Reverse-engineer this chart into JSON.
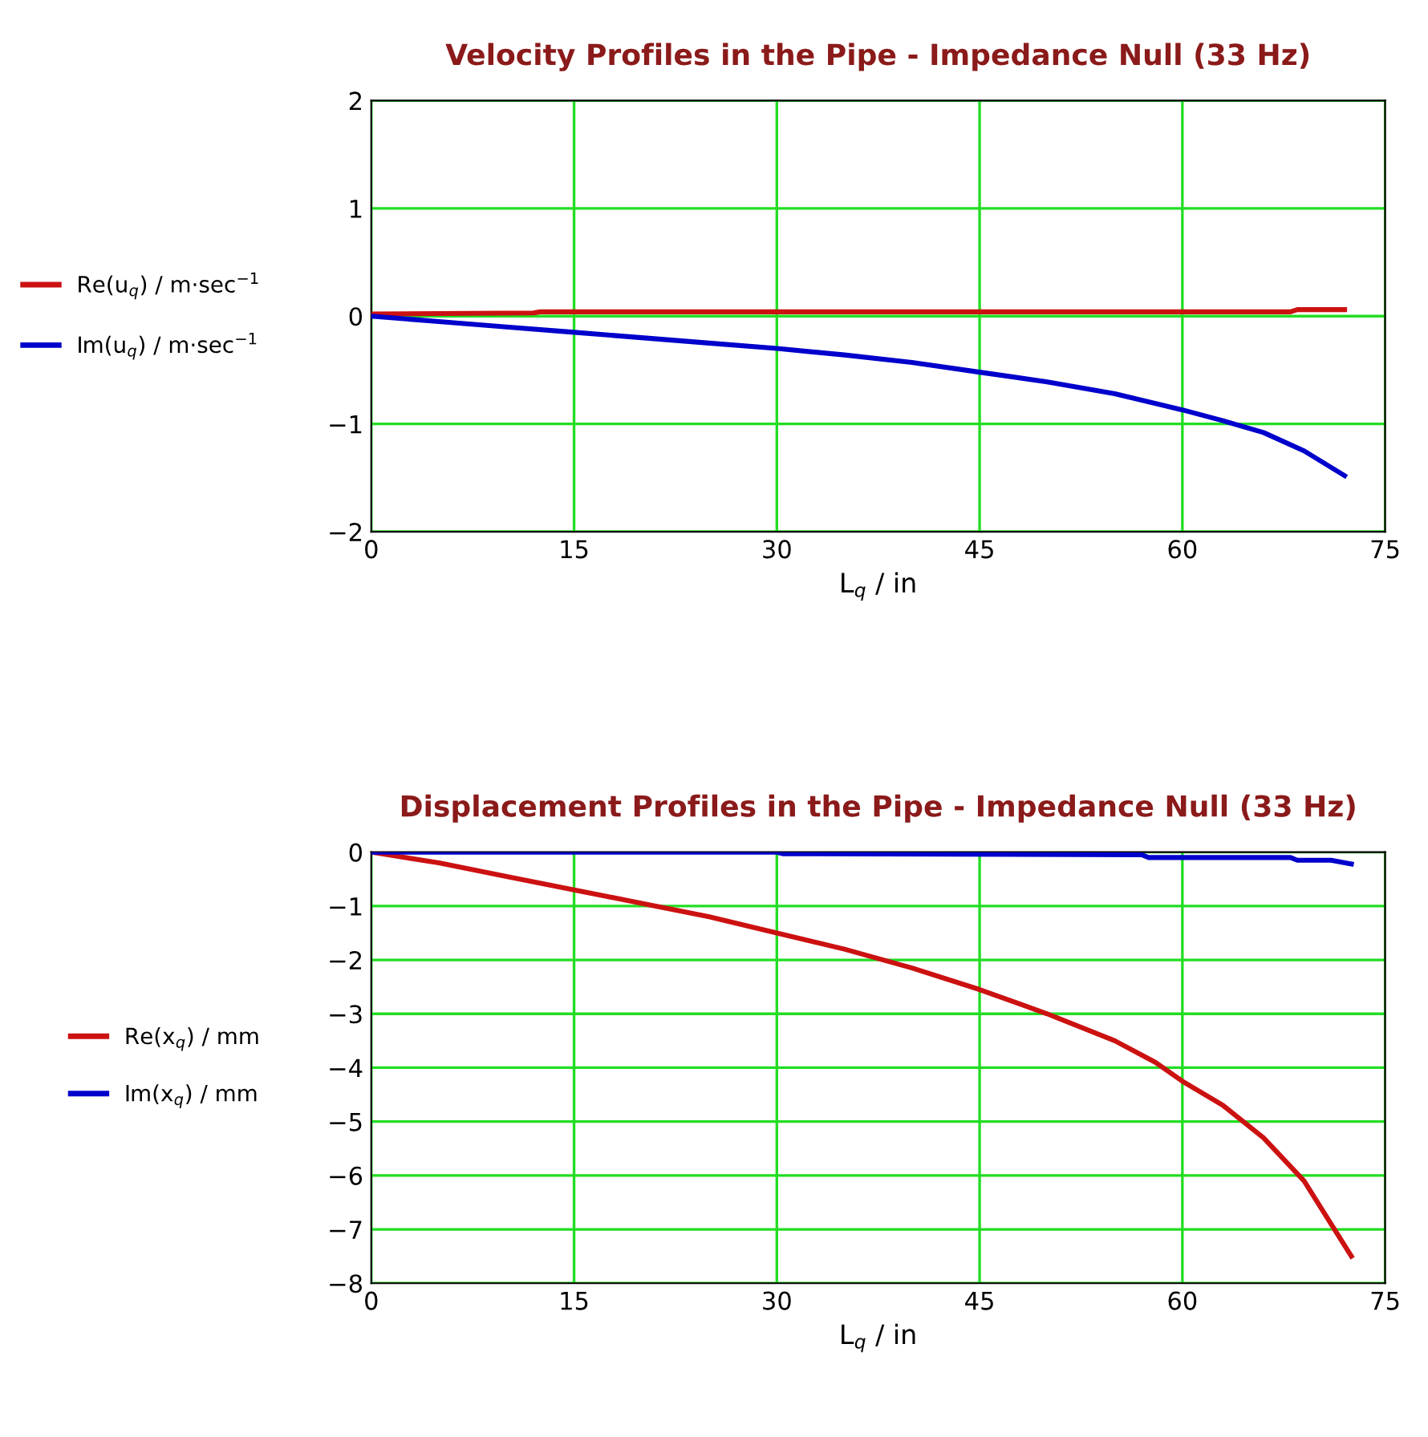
{
  "chart_data": [
    {
      "type": "line",
      "title": "Velocity Profiles in the Pipe - Impedance Null (33 Hz)",
      "xlabel": "L$_{q}$ / in",
      "xlim": [
        0,
        75
      ],
      "xticks": [
        0,
        15,
        30,
        45,
        60,
        75
      ],
      "ylim": [
        -2,
        2
      ],
      "yticks": [
        -2,
        -1,
        0,
        1,
        2
      ],
      "grid": true,
      "legend": "left",
      "line_style": "solid",
      "marker": "none",
      "series": [
        {
          "name": "Re(u$_{q}$) / m·sec$^{−1}$",
          "color": "#cc1111",
          "x": [
            0,
            12,
            12.5,
            68,
            68.5,
            72
          ],
          "values": [
            0.02,
            0.03,
            0.04,
            0.04,
            0.06,
            0.06
          ]
        },
        {
          "name": "Im(u$_{q}$) / m·sec$^{−1}$",
          "color": "#0000cc",
          "x": [
            0,
            5,
            10,
            15,
            20,
            25,
            30,
            35,
            40,
            45,
            50,
            55,
            60,
            63,
            66,
            69,
            72
          ],
          "values": [
            0,
            -0.05,
            -0.1,
            -0.15,
            -0.2,
            -0.25,
            -0.3,
            -0.36,
            -0.43,
            -0.52,
            -0.61,
            -0.72,
            -0.87,
            -0.97,
            -1.08,
            -1.25,
            -1.48
          ]
        }
      ]
    },
    {
      "type": "line",
      "title": "Displacement Profiles in the Pipe - Impedance Null (33 Hz)",
      "xlabel": "L$_{q}$ / in",
      "xlim": [
        0,
        75
      ],
      "xticks": [
        0,
        15,
        30,
        45,
        60,
        75
      ],
      "ylim": [
        -8,
        0
      ],
      "yticks": [
        -8,
        -7,
        -6,
        -5,
        -4,
        -3,
        -2,
        -1,
        0
      ],
      "grid": true,
      "legend": "left",
      "line_style": "solid",
      "marker": "none",
      "series": [
        {
          "name": "Re(x$_{q}$) / mm",
          "color": "#cc1111",
          "x": [
            0,
            5,
            10,
            15,
            20,
            25,
            30,
            35,
            40,
            45,
            50,
            55,
            58,
            60,
            63,
            66,
            69,
            71,
            72.5
          ],
          "values": [
            0,
            -0.2,
            -0.45,
            -0.7,
            -0.95,
            -1.2,
            -1.5,
            -1.8,
            -2.15,
            -2.55,
            -3.0,
            -3.5,
            -3.9,
            -4.25,
            -4.7,
            -5.3,
            -6.1,
            -6.9,
            -7.5
          ]
        },
        {
          "name": "Im(x$_{q}$) / mm",
          "color": "#0000cc",
          "x": [
            0,
            30,
            30.5,
            57,
            57.5,
            68,
            68.5,
            71,
            72.5
          ],
          "values": [
            0,
            0,
            -0.03,
            -0.05,
            -0.1,
            -0.1,
            -0.15,
            -0.15,
            -0.22
          ]
        }
      ]
    }
  ]
}
